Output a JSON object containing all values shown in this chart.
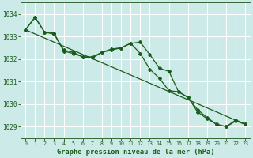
{
  "title": "Graphe pression niveau de la mer (hPa)",
  "background_color": "#cceae8",
  "grid_color": "#ffffff",
  "line_color": "#1a5c1a",
  "ylim": [
    1028.5,
    1034.5
  ],
  "yticks": [
    1029,
    1030,
    1031,
    1032,
    1033,
    1034
  ],
  "xlim": [
    -0.5,
    23.5
  ],
  "xticks": [
    0,
    1,
    2,
    3,
    4,
    5,
    6,
    7,
    8,
    9,
    10,
    11,
    12,
    13,
    14,
    15,
    16,
    17,
    18,
    19,
    20,
    21,
    22,
    23
  ],
  "trend_x": [
    0,
    23
  ],
  "trend_y": [
    1033.3,
    1029.1
  ],
  "curve1_x": [
    0,
    1,
    2,
    3,
    4,
    5,
    6,
    7,
    8,
    9,
    10,
    11,
    12,
    13,
    14,
    15,
    16,
    17,
    18,
    19,
    20,
    21,
    22,
    23
  ],
  "curve1_y": [
    1033.3,
    1033.85,
    1033.2,
    1033.1,
    1032.4,
    1032.3,
    1032.1,
    1032.1,
    1032.3,
    1032.45,
    1032.5,
    1032.7,
    1032.25,
    1031.55,
    1031.15,
    1030.6,
    1030.55,
    1030.3,
    1029.75,
    1029.4,
    1029.1,
    1029.0,
    1029.25,
    1029.1
  ],
  "curve2_x": [
    0,
    1,
    2,
    3,
    4,
    5,
    6,
    7,
    8,
    9,
    10,
    11,
    12,
    13,
    14,
    15,
    16,
    17,
    18,
    19,
    20,
    21,
    22,
    23
  ],
  "curve2_y": [
    1033.3,
    1033.85,
    1033.2,
    1033.15,
    1032.35,
    1032.25,
    1032.1,
    1032.05,
    1032.3,
    1032.4,
    1032.5,
    1032.7,
    1032.75,
    1032.2,
    1031.6,
    1031.45,
    1030.55,
    1030.3,
    1029.65,
    1029.35,
    1029.1,
    1029.0,
    1029.3,
    1029.1
  ]
}
